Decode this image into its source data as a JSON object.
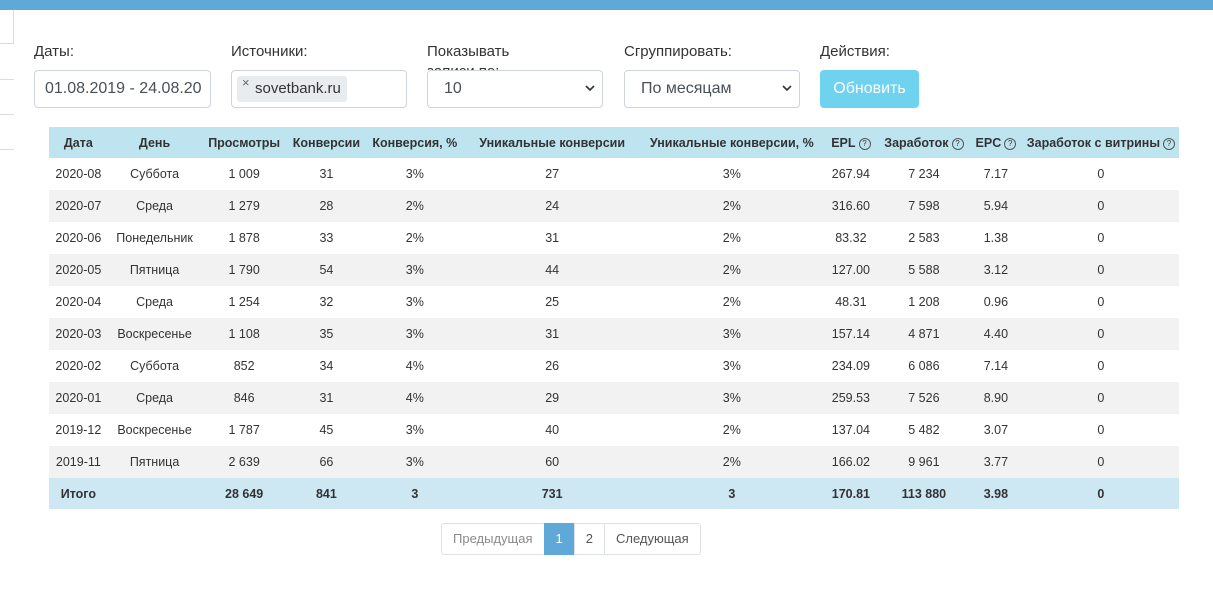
{
  "filters": {
    "dates_label": "Даты:",
    "dates_value": "01.08.2019 - 24.08.20",
    "sources_label": "Источники:",
    "source_tag": "sovetbank.ru",
    "source_remove": "×",
    "per_page_label": "Показывать записи по:",
    "per_page_value": "10",
    "group_label": "Сгруппировать:",
    "group_value": "По месяцам",
    "actions_label": "Действия:",
    "refresh_label": "Обновить"
  },
  "table": {
    "headers": [
      "Дата",
      "День",
      "Просмотры",
      "Конверсии",
      "Конверсия, %",
      "Уникальные конверсии",
      "Уникальные конверсии, %",
      "EPL",
      "Заработок",
      "EPC",
      "Заработок с витрины"
    ],
    "help_glyph": "?",
    "rows": [
      [
        "2020-08",
        "Суббота",
        "1 009",
        "31",
        "3%",
        "27",
        "3%",
        "267.94",
        "7 234",
        "7.17",
        "0"
      ],
      [
        "2020-07",
        "Среда",
        "1 279",
        "28",
        "2%",
        "24",
        "2%",
        "316.60",
        "7 598",
        "5.94",
        "0"
      ],
      [
        "2020-06",
        "Понедельник",
        "1 878",
        "33",
        "2%",
        "31",
        "2%",
        "83.32",
        "2 583",
        "1.38",
        "0"
      ],
      [
        "2020-05",
        "Пятница",
        "1 790",
        "54",
        "3%",
        "44",
        "2%",
        "127.00",
        "5 588",
        "3.12",
        "0"
      ],
      [
        "2020-04",
        "Среда",
        "1 254",
        "32",
        "3%",
        "25",
        "2%",
        "48.31",
        "1 208",
        "0.96",
        "0"
      ],
      [
        "2020-03",
        "Воскресенье",
        "1 108",
        "35",
        "3%",
        "31",
        "3%",
        "157.14",
        "4 871",
        "4.40",
        "0"
      ],
      [
        "2020-02",
        "Суббота",
        "852",
        "34",
        "4%",
        "26",
        "3%",
        "234.09",
        "6 086",
        "7.14",
        "0"
      ],
      [
        "2020-01",
        "Среда",
        "846",
        "31",
        "4%",
        "29",
        "3%",
        "259.53",
        "7 526",
        "8.90",
        "0"
      ],
      [
        "2019-12",
        "Воскресенье",
        "1 787",
        "45",
        "3%",
        "40",
        "2%",
        "137.04",
        "5 482",
        "3.07",
        "0"
      ],
      [
        "2019-11",
        "Пятница",
        "2 639",
        "66",
        "3%",
        "60",
        "2%",
        "166.02",
        "9 961",
        "3.77",
        "0"
      ]
    ],
    "total": [
      "Итого",
      "",
      "28 649",
      "841",
      "3",
      "731",
      "3",
      "170.81",
      "113 880",
      "3.98",
      "0"
    ]
  },
  "pagination": {
    "prev": "Предыдущая",
    "pages": [
      "1",
      "2"
    ],
    "current": "1",
    "next": "Следующая"
  },
  "colors": {
    "topbar": "#5ea9d8",
    "header_bg": "#bde4ef",
    "total_bg": "#cde8f2",
    "button_bg": "#6fd3f0",
    "active_page": "#5ea9d8"
  }
}
